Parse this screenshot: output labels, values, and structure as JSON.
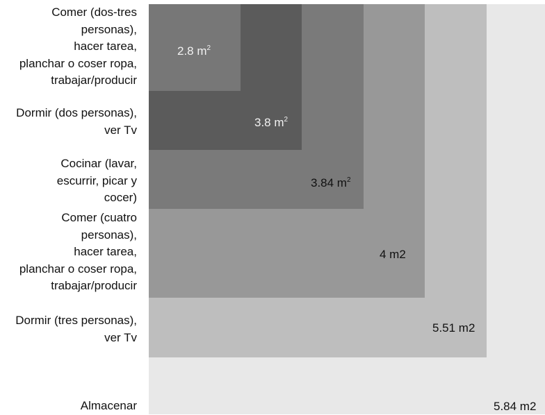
{
  "colors": {
    "almacenar": "#e8e8e8",
    "dormir_tres": "#bebebe",
    "comer_cuatro": "#989898",
    "cocinar": "#7a7a7a",
    "dormir_dos": "#5b5b5b",
    "comer_dos_tres": "#777777"
  },
  "activities": {
    "comer_dos_tres": {
      "lines": [
        "Comer (dos-tres",
        "personas),",
        "hacer tarea,",
        "planchar o coser ropa,",
        "trabajar/producir"
      ],
      "area_value": "2.8 m",
      "area_exp": "2"
    },
    "dormir_dos": {
      "lines": [
        "Dormir (dos personas),",
        "ver Tv"
      ],
      "area_value": "3.8 m",
      "area_exp": "2"
    },
    "cocinar": {
      "lines": [
        "Cocinar (lavar,",
        "escurrir, picar y",
        "cocer)"
      ],
      "area_value": "3.84 m",
      "area_exp": "2"
    },
    "comer_cuatro": {
      "lines": [
        "Comer (cuatro",
        "personas),",
        "hacer tarea,",
        "planchar o coser ropa,",
        "trabajar/producir"
      ],
      "area_value": "4 m2"
    },
    "dormir_tres": {
      "lines": [
        "Dormir (tres personas),",
        "ver Tv"
      ],
      "area_value": "5.51 m2"
    },
    "almacenar": {
      "lines": [
        "Almacenar"
      ],
      "area_value": "5.84 m2"
    }
  }
}
